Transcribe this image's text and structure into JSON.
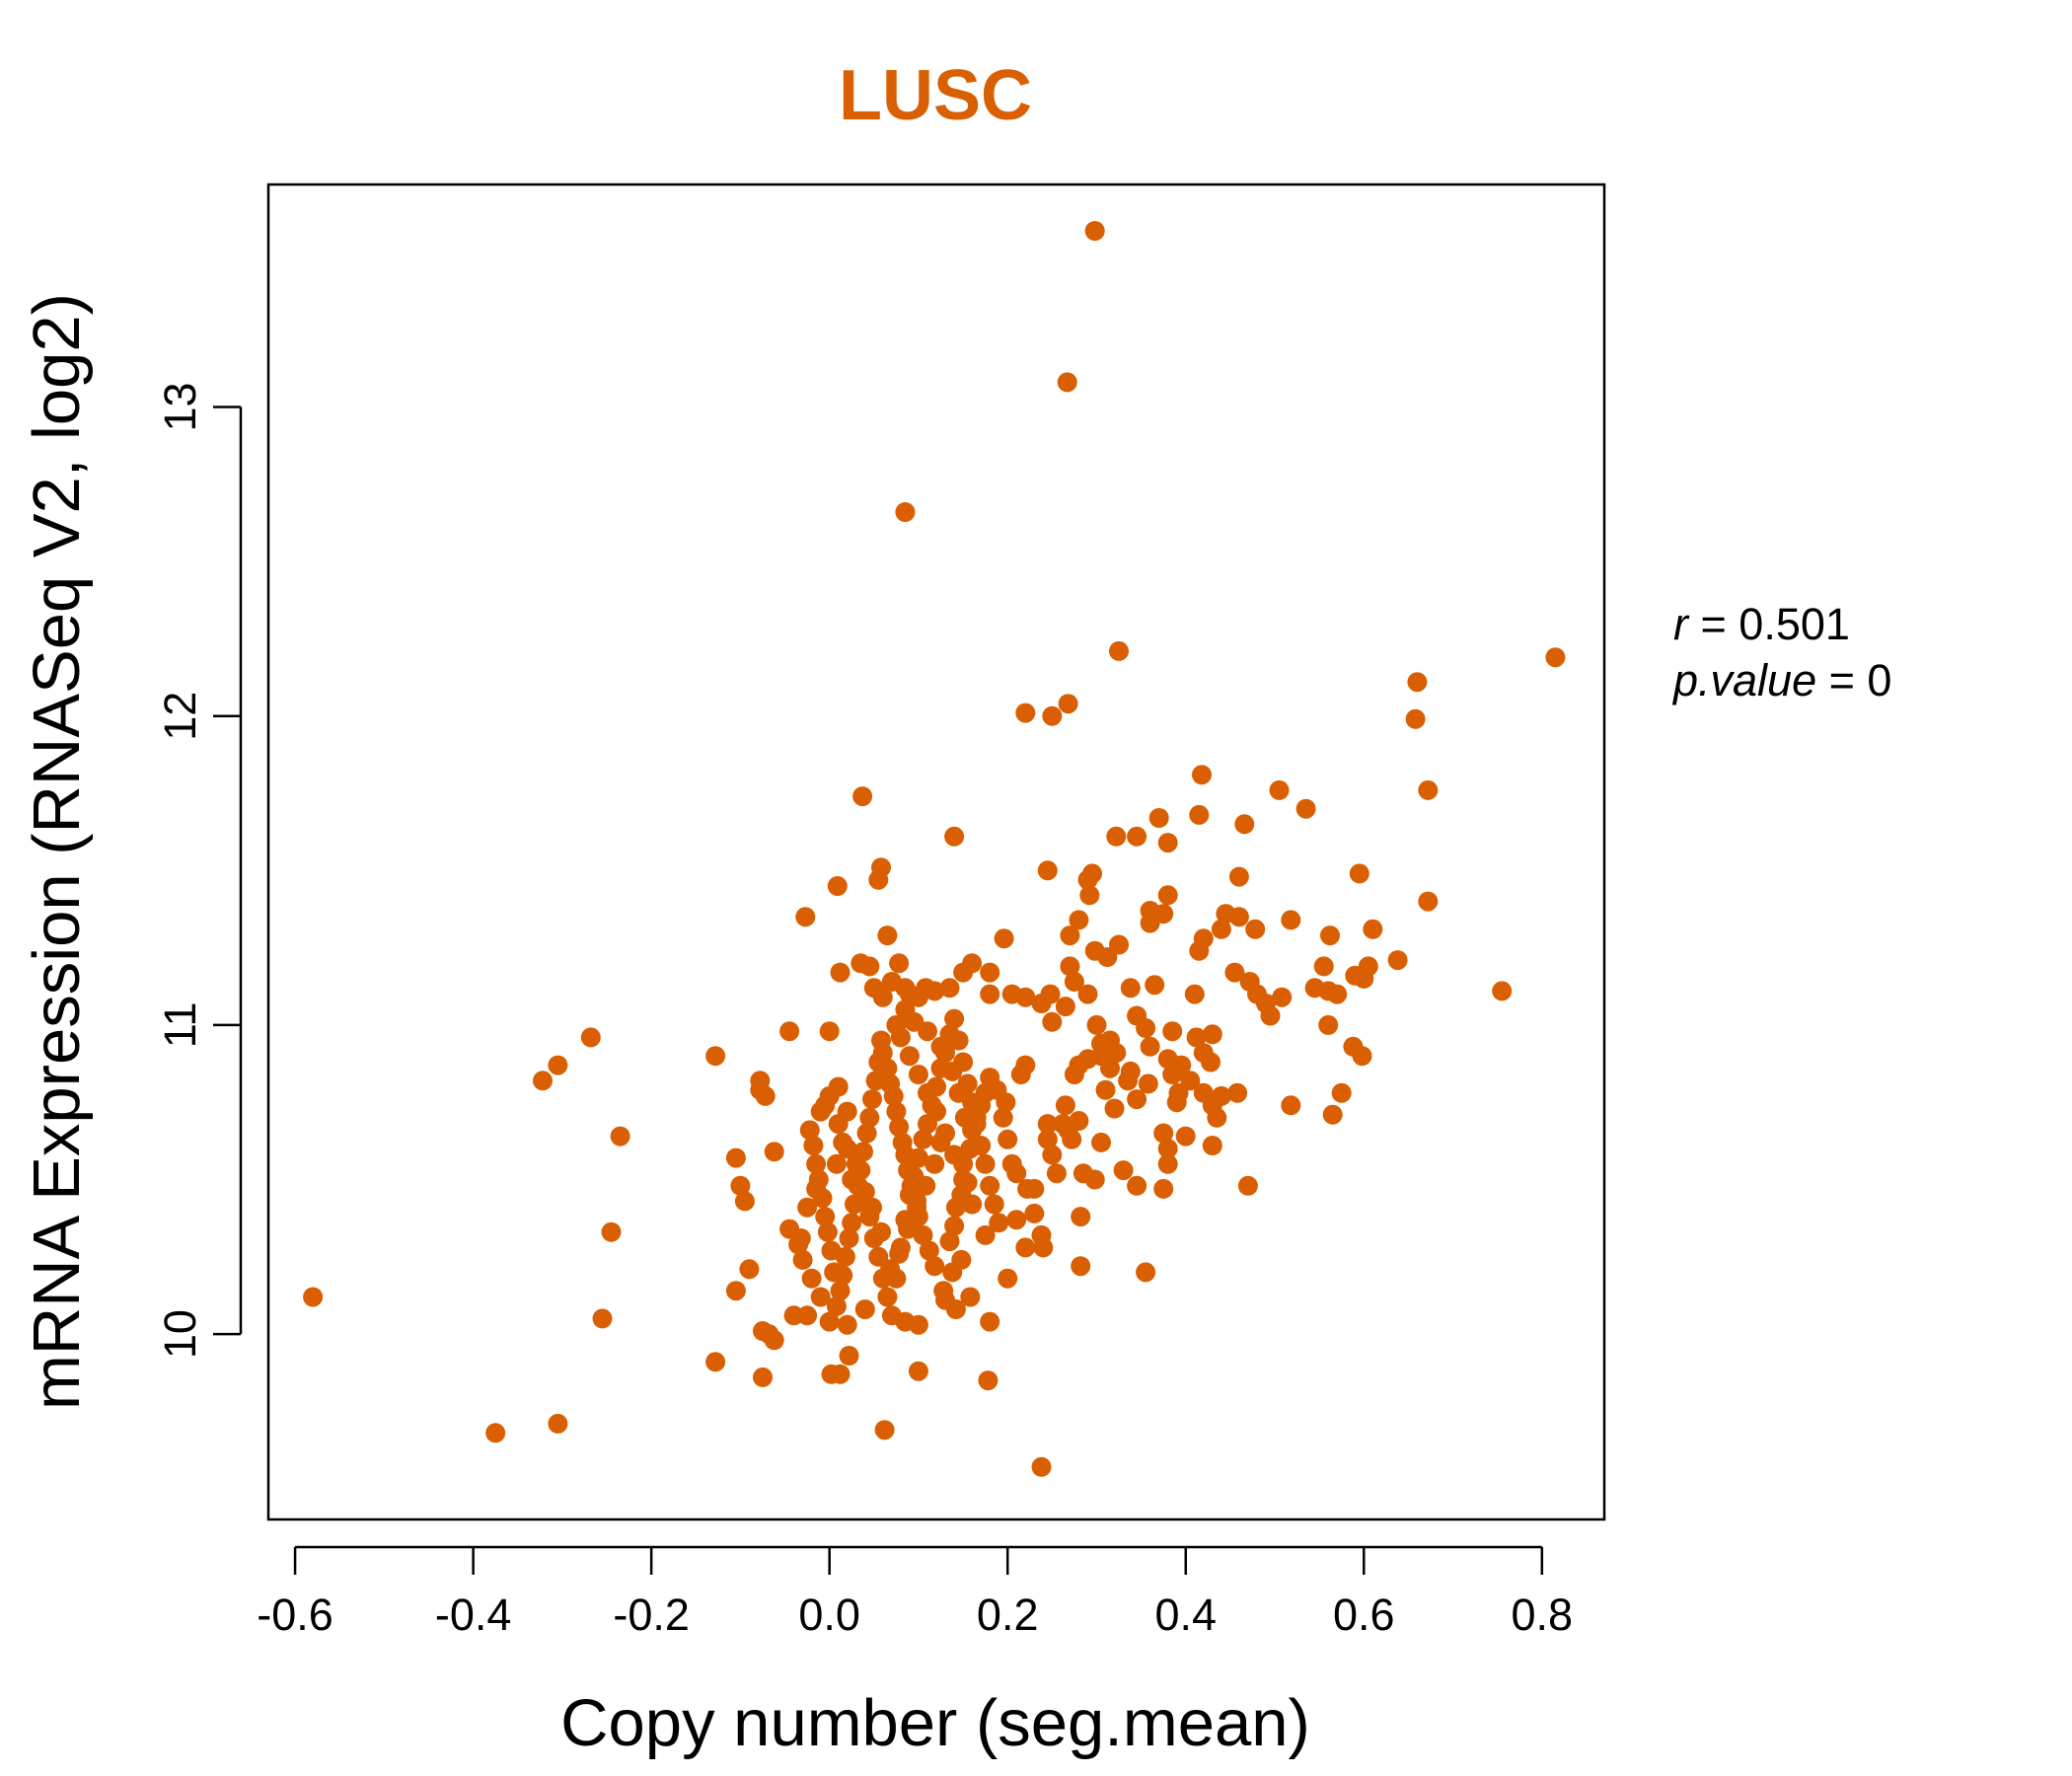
{
  "chart_data": {
    "type": "scatter",
    "title": "LUSC",
    "xlabel": "Copy number (seg.mean)",
    "ylabel": "mRNA Expression (RNASeq V2, log2)",
    "xlim": [
      -0.63,
      0.87
    ],
    "ylim": [
      9.4,
      13.72
    ],
    "x_ticks": [
      -0.6,
      -0.4,
      -0.2,
      0.0,
      0.2,
      0.4,
      0.6,
      0.8
    ],
    "x_tick_labels": [
      "-0.6",
      "-0.4",
      "-0.2",
      "0.0",
      "0.2",
      "0.4",
      "0.6",
      "0.8"
    ],
    "y_ticks": [
      10,
      11,
      12,
      13
    ],
    "y_tick_labels": [
      "10",
      "11",
      "12",
      "13"
    ],
    "grid": false,
    "annotation": {
      "r_label": "r",
      "r_value": "0.501",
      "p_label": "p.value",
      "p_value": "0"
    },
    "colors": {
      "points": "#D95F02",
      "title": "#D95F02",
      "axis": "#000000"
    },
    "points": [
      [
        -0.58,
        10.12
      ],
      [
        -0.375,
        9.68
      ],
      [
        -0.305,
        9.71
      ],
      [
        -0.322,
        10.82
      ],
      [
        -0.305,
        10.87
      ],
      [
        -0.268,
        10.96
      ],
      [
        -0.235,
        10.64
      ],
      [
        -0.245,
        10.33
      ],
      [
        -0.255,
        10.05
      ],
      [
        0.298,
        13.57
      ],
      [
        0.267,
        13.08
      ],
      [
        0.085,
        12.66
      ],
      [
        0.325,
        12.21
      ],
      [
        0.815,
        12.19
      ],
      [
        0.22,
        12.01
      ],
      [
        0.25,
        12.0
      ],
      [
        0.268,
        12.04
      ],
      [
        0.66,
        12.11
      ],
      [
        0.658,
        11.99
      ],
      [
        0.418,
        11.81
      ],
      [
        0.505,
        11.76
      ],
      [
        0.535,
        11.7
      ],
      [
        0.672,
        11.76
      ],
      [
        0.037,
        11.74
      ],
      [
        0.14,
        11.61
      ],
      [
        0.37,
        11.67
      ],
      [
        0.322,
        11.61
      ],
      [
        0.345,
        11.61
      ],
      [
        0.38,
        11.59
      ],
      [
        0.415,
        11.68
      ],
      [
        0.466,
        11.65
      ],
      [
        0.245,
        11.5
      ],
      [
        0.295,
        11.49
      ],
      [
        0.29,
        11.47
      ],
      [
        0.292,
        11.42
      ],
      [
        0.36,
        11.37
      ],
      [
        0.38,
        11.42
      ],
      [
        0.595,
        11.49
      ],
      [
        0.672,
        11.4
      ],
      [
        0.46,
        11.48
      ],
      [
        0.009,
        11.45
      ],
      [
        0.055,
        11.47
      ],
      [
        0.058,
        11.51
      ],
      [
        -0.027,
        11.35
      ],
      [
        0.065,
        11.29
      ],
      [
        0.196,
        11.28
      ],
      [
        0.27,
        11.29
      ],
      [
        0.28,
        11.34
      ],
      [
        0.36,
        11.33
      ],
      [
        0.375,
        11.36
      ],
      [
        0.415,
        11.24
      ],
      [
        0.42,
        11.28
      ],
      [
        0.44,
        11.31
      ],
      [
        0.445,
        11.36
      ],
      [
        0.46,
        11.35
      ],
      [
        0.478,
        11.31
      ],
      [
        0.518,
        11.34
      ],
      [
        0.562,
        11.29
      ],
      [
        0.61,
        11.31
      ],
      [
        0.555,
        11.19
      ],
      [
        0.605,
        11.19
      ],
      [
        0.638,
        11.21
      ],
      [
        0.59,
        11.16
      ],
      [
        0.6,
        11.15
      ],
      [
        0.545,
        11.12
      ],
      [
        0.56,
        11.11
      ],
      [
        0.57,
        11.1
      ],
      [
        0.755,
        11.11
      ],
      [
        0.508,
        11.09
      ],
      [
        0.472,
        11.14
      ],
      [
        0.48,
        11.1
      ],
      [
        0.49,
        11.07
      ],
      [
        0.495,
        11.03
      ],
      [
        0.41,
        11.1
      ],
      [
        0.455,
        11.17
      ],
      [
        0.365,
        11.13
      ],
      [
        0.338,
        11.12
      ],
      [
        0.312,
        11.22
      ],
      [
        0.325,
        11.26
      ],
      [
        0.298,
        11.24
      ],
      [
        0.27,
        11.19
      ],
      [
        0.275,
        11.14
      ],
      [
        0.248,
        11.1
      ],
      [
        0.238,
        11.07
      ],
      [
        0.22,
        11.09
      ],
      [
        0.205,
        11.1
      ],
      [
        0.18,
        11.17
      ],
      [
        0.18,
        11.1
      ],
      [
        0.15,
        11.17
      ],
      [
        0.16,
        11.2
      ],
      [
        0.135,
        11.12
      ],
      [
        0.118,
        11.11
      ],
      [
        0.108,
        11.12
      ],
      [
        0.1,
        11.09
      ],
      [
        0.09,
        11.1
      ],
      [
        0.085,
        11.12
      ],
      [
        0.07,
        11.14
      ],
      [
        0.078,
        11.2
      ],
      [
        0.045,
        11.19
      ],
      [
        0.05,
        11.12
      ],
      [
        0.06,
        11.09
      ],
      [
        0.035,
        11.2
      ],
      [
        0.012,
        11.17
      ],
      [
        0.0,
        10.98
      ],
      [
        -0.045,
        10.98
      ],
      [
        -0.128,
        10.9
      ],
      [
        -0.078,
        10.82
      ],
      [
        -0.078,
        10.79
      ],
      [
        -0.072,
        10.77
      ],
      [
        -0.062,
        10.59
      ],
      [
        -0.105,
        10.57
      ],
      [
        -0.1,
        10.48
      ],
      [
        -0.095,
        10.43
      ],
      [
        -0.105,
        10.14
      ],
      [
        -0.09,
        10.21
      ],
      [
        -0.075,
        10.01
      ],
      [
        -0.068,
        10.0
      ],
      [
        -0.062,
        9.98
      ],
      [
        -0.128,
        9.91
      ],
      [
        -0.075,
        9.86
      ],
      [
        -0.025,
        10.06
      ],
      [
        -0.032,
        10.31
      ],
      [
        -0.045,
        10.34
      ],
      [
        -0.03,
        10.24
      ],
      [
        -0.04,
        10.06
      ],
      [
        0.002,
        9.87
      ],
      [
        0.012,
        9.87
      ],
      [
        0.022,
        9.93
      ],
      [
        0.062,
        9.69
      ],
      [
        0.1,
        9.88
      ],
      [
        0.178,
        9.85
      ],
      [
        0.238,
        9.57
      ],
      [
        0.282,
        10.22
      ],
      [
        0.355,
        10.2
      ],
      [
        0.47,
        10.48
      ],
      [
        0.38,
        10.55
      ],
      [
        0.345,
        10.48
      ],
      [
        0.33,
        10.53
      ],
      [
        0.298,
        10.5
      ],
      [
        0.282,
        10.38
      ],
      [
        0.43,
        10.61
      ],
      [
        0.4,
        10.64
      ],
      [
        0.375,
        10.65
      ],
      [
        0.38,
        10.6
      ],
      [
        0.375,
        10.47
      ],
      [
        0.565,
        10.71
      ],
      [
        0.575,
        10.78
      ],
      [
        0.598,
        10.9
      ],
      [
        0.588,
        10.93
      ],
      [
        0.56,
        11.0
      ],
      [
        0.518,
        10.74
      ],
      [
        0.458,
        10.78
      ],
      [
        0.44,
        10.77
      ],
      [
        0.43,
        10.74
      ],
      [
        0.435,
        10.7
      ],
      [
        0.42,
        10.78
      ],
      [
        0.405,
        10.82
      ],
      [
        0.39,
        10.75
      ],
      [
        0.395,
        10.87
      ],
      [
        0.385,
        10.84
      ],
      [
        0.38,
        10.89
      ],
      [
        0.36,
        10.93
      ],
      [
        0.355,
        10.99
      ],
      [
        0.345,
        11.03
      ],
      [
        0.42,
        10.91
      ],
      [
        0.428,
        10.88
      ],
      [
        0.43,
        10.97
      ],
      [
        0.392,
        10.78
      ],
      [
        0.345,
        10.76
      ],
      [
        0.32,
        10.73
      ],
      [
        0.31,
        10.79
      ],
      [
        0.315,
        10.86
      ],
      [
        0.305,
        10.9
      ],
      [
        0.322,
        10.91
      ],
      [
        0.305,
        10.94
      ],
      [
        0.29,
        10.89
      ],
      [
        0.28,
        10.87
      ],
      [
        0.275,
        10.84
      ],
      [
        0.28,
        10.69
      ],
      [
        0.268,
        10.66
      ],
      [
        0.272,
        10.63
      ],
      [
        0.262,
        10.68
      ],
      [
        0.245,
        10.68
      ],
      [
        0.245,
        10.63
      ],
      [
        0.255,
        10.52
      ],
      [
        0.23,
        10.47
      ],
      [
        0.238,
        10.32
      ],
      [
        0.24,
        10.28
      ],
      [
        0.23,
        10.39
      ],
      [
        0.222,
        10.47
      ],
      [
        0.21,
        10.52
      ],
      [
        0.205,
        10.55
      ],
      [
        0.2,
        10.63
      ],
      [
        0.195,
        10.7
      ],
      [
        0.198,
        10.75
      ],
      [
        0.188,
        10.79
      ],
      [
        0.18,
        10.83
      ],
      [
        0.175,
        10.78
      ],
      [
        0.17,
        10.74
      ],
      [
        0.165,
        10.7
      ],
      [
        0.16,
        10.66
      ],
      [
        0.158,
        10.6
      ],
      [
        0.15,
        10.55
      ],
      [
        0.155,
        10.49
      ],
      [
        0.148,
        10.45
      ],
      [
        0.142,
        10.41
      ],
      [
        0.14,
        10.35
      ],
      [
        0.135,
        10.3
      ],
      [
        0.148,
        10.24
      ],
      [
        0.138,
        10.2
      ],
      [
        0.158,
        10.12
      ],
      [
        0.142,
        10.08
      ],
      [
        0.128,
        10.14
      ],
      [
        0.118,
        10.22
      ],
      [
        0.112,
        10.27
      ],
      [
        0.105,
        10.32
      ],
      [
        0.1,
        10.38
      ],
      [
        0.098,
        10.43
      ],
      [
        0.092,
        10.48
      ],
      [
        0.088,
        10.53
      ],
      [
        0.085,
        10.58
      ],
      [
        0.082,
        10.62
      ],
      [
        0.078,
        10.67
      ],
      [
        0.075,
        10.72
      ],
      [
        0.072,
        10.77
      ],
      [
        0.068,
        10.81
      ],
      [
        0.065,
        10.86
      ],
      [
        0.06,
        10.91
      ],
      [
        0.058,
        10.95
      ],
      [
        0.055,
        10.88
      ],
      [
        0.052,
        10.82
      ],
      [
        0.048,
        10.76
      ],
      [
        0.045,
        10.7
      ],
      [
        0.042,
        10.65
      ],
      [
        0.038,
        10.59
      ],
      [
        0.035,
        10.53
      ],
      [
        0.032,
        10.48
      ],
      [
        0.028,
        10.42
      ],
      [
        0.025,
        10.36
      ],
      [
        0.022,
        10.31
      ],
      [
        0.018,
        10.25
      ],
      [
        0.015,
        10.19
      ],
      [
        0.012,
        10.14
      ],
      [
        0.008,
        10.09
      ],
      [
        0.005,
        10.2
      ],
      [
        0.002,
        10.27
      ],
      [
        -0.002,
        10.33
      ],
      [
        -0.005,
        10.38
      ],
      [
        -0.008,
        10.44
      ],
      [
        -0.012,
        10.5
      ],
      [
        -0.015,
        10.55
      ],
      [
        -0.018,
        10.61
      ],
      [
        -0.022,
        10.66
      ],
      [
        -0.01,
        10.72
      ],
      [
        0.0,
        10.77
      ],
      [
        0.01,
        10.8
      ],
      [
        0.02,
        10.72
      ],
      [
        0.015,
        10.62
      ],
      [
        0.008,
        10.55
      ],
      [
        0.025,
        10.5
      ],
      [
        0.035,
        10.43
      ],
      [
        0.045,
        10.38
      ],
      [
        0.05,
        10.31
      ],
      [
        0.055,
        10.25
      ],
      [
        0.06,
        10.18
      ],
      [
        0.065,
        10.12
      ],
      [
        0.07,
        10.06
      ],
      [
        0.075,
        10.18
      ],
      [
        0.08,
        10.28
      ],
      [
        0.085,
        10.37
      ],
      [
        0.09,
        10.45
      ],
      [
        0.095,
        10.51
      ],
      [
        0.1,
        10.57
      ],
      [
        0.105,
        10.63
      ],
      [
        0.11,
        10.68
      ],
      [
        0.115,
        10.74
      ],
      [
        0.12,
        10.8
      ],
      [
        0.125,
        10.86
      ],
      [
        0.13,
        10.91
      ],
      [
        0.135,
        10.97
      ],
      [
        0.14,
        11.02
      ],
      [
        0.145,
        10.95
      ],
      [
        0.15,
        10.88
      ],
      [
        0.155,
        10.81
      ],
      [
        0.16,
        10.75
      ],
      [
        0.165,
        10.68
      ],
      [
        0.17,
        10.61
      ],
      [
        0.175,
        10.55
      ],
      [
        0.18,
        10.48
      ],
      [
        0.185,
        10.42
      ],
      [
        0.19,
        10.36
      ],
      [
        0.175,
        10.32
      ],
      [
        0.16,
        10.42
      ],
      [
        0.15,
        10.5
      ],
      [
        0.14,
        10.58
      ],
      [
        0.13,
        10.65
      ],
      [
        0.12,
        10.72
      ],
      [
        0.11,
        10.78
      ],
      [
        0.1,
        10.84
      ],
      [
        0.09,
        10.9
      ],
      [
        0.08,
        10.96
      ],
      [
        0.075,
        11.0
      ],
      [
        0.085,
        11.05
      ],
      [
        0.095,
        11.01
      ],
      [
        0.11,
        10.98
      ],
      [
        0.125,
        10.93
      ],
      [
        0.138,
        10.85
      ],
      [
        0.145,
        10.78
      ],
      [
        0.152,
        10.7
      ],
      [
        0.125,
        10.62
      ],
      [
        0.118,
        10.55
      ],
      [
        0.108,
        10.48
      ],
      [
        0.098,
        10.41
      ],
      [
        0.088,
        10.34
      ],
      [
        0.078,
        10.26
      ],
      [
        0.068,
        10.21
      ],
      [
        0.058,
        10.33
      ],
      [
        0.048,
        10.41
      ],
      [
        0.04,
        10.46
      ],
      [
        0.03,
        10.55
      ],
      [
        0.02,
        10.6
      ],
      [
        0.01,
        10.68
      ],
      [
        -0.005,
        10.74
      ],
      [
        -0.015,
        10.47
      ],
      [
        -0.025,
        10.41
      ],
      [
        -0.035,
        10.29
      ],
      [
        -0.02,
        10.18
      ],
      [
        -0.01,
        10.12
      ],
      [
        0.0,
        10.04
      ],
      [
        0.02,
        10.03
      ],
      [
        0.04,
        10.08
      ],
      [
        0.1,
        10.03
      ],
      [
        0.085,
        10.04
      ],
      [
        0.13,
        10.11
      ],
      [
        0.18,
        10.04
      ],
      [
        0.2,
        10.18
      ],
      [
        0.21,
        10.37
      ],
      [
        0.22,
        10.28
      ],
      [
        0.25,
        10.58
      ],
      [
        0.265,
        10.74
      ],
      [
        0.285,
        10.52
      ],
      [
        0.305,
        10.62
      ],
      [
        0.22,
        10.87
      ],
      [
        0.215,
        10.84
      ],
      [
        0.25,
        11.01
      ],
      [
        0.265,
        11.06
      ],
      [
        0.29,
        11.1
      ],
      [
        0.3,
        11.0
      ],
      [
        0.315,
        10.95
      ],
      [
        0.335,
        10.82
      ],
      [
        0.338,
        10.85
      ],
      [
        0.358,
        10.81
      ],
      [
        0.385,
        10.98
      ],
      [
        0.412,
        10.96
      ]
    ]
  }
}
